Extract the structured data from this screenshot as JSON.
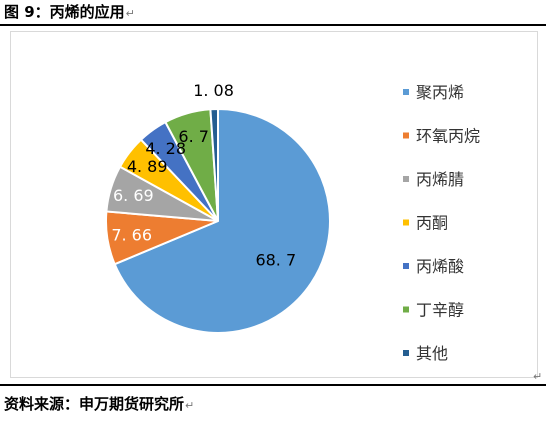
{
  "figure_title": "图 9：丙烯的应用",
  "source_text": "资料来源：申万期货研究所",
  "paragraph_mark": "↵",
  "chart_data": {
    "type": "pie",
    "title": "",
    "categories": [
      "聚丙烯",
      "环氧丙烷",
      "丙烯腈",
      "丙酮",
      "丙烯酸",
      "丁辛醇",
      "其他"
    ],
    "values": [
      68.7,
      7.66,
      6.69,
      4.89,
      4.28,
      6.7,
      1.08
    ],
    "value_labels": [
      "68. 7",
      "7. 66",
      "6. 69",
      "4. 89",
      "4. 28",
      "6. 7",
      "1. 08"
    ],
    "colors": [
      "#5b9bd5",
      "#ed7d31",
      "#a5a5a5",
      "#ffc000",
      "#4472c4",
      "#70ad47",
      "#255e91"
    ],
    "legend_position": "right"
  }
}
